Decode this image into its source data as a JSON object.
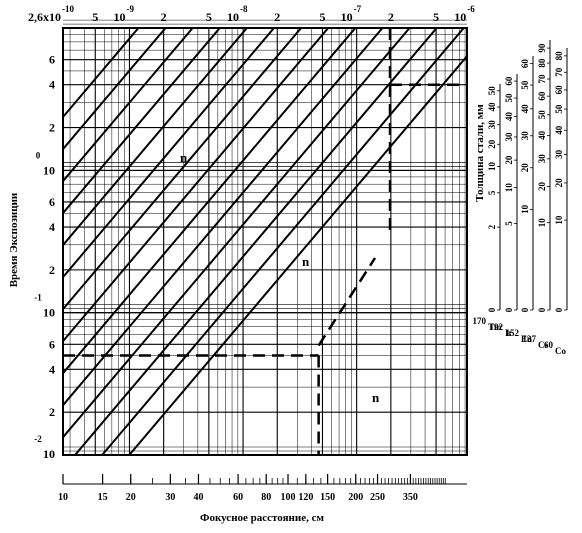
{
  "chart_data": {
    "type": "line",
    "subtype": "log-log exposure nomogram",
    "ylabel": "Время  Экспозиции",
    "xlabel": "Фокусное расстояние, см",
    "right_label": "Толщина стали, мм",
    "top_axis": {
      "scale": "log",
      "range": [
        2.6e-10,
        1e-06
      ],
      "ticks": [
        {
          "value": 2.6e-10,
          "mantissa": "2,6x10",
          "exp": "-10"
        },
        {
          "value": 5e-10,
          "mantissa": "5",
          "exp": ""
        },
        {
          "value": 1e-09,
          "mantissa": "10",
          "exp": "-9"
        },
        {
          "value": 2e-09,
          "mantissa": "2",
          "exp": ""
        },
        {
          "value": 5e-09,
          "mantissa": "5",
          "exp": ""
        },
        {
          "value": 1e-08,
          "mantissa": "10",
          "exp": "-8"
        },
        {
          "value": 2e-08,
          "mantissa": "2",
          "exp": ""
        },
        {
          "value": 5e-08,
          "mantissa": "5",
          "exp": ""
        },
        {
          "value": 1e-07,
          "mantissa": "10",
          "exp": "-7"
        },
        {
          "value": 2e-07,
          "mantissa": "2",
          "exp": ""
        },
        {
          "value": 5e-07,
          "mantissa": "5",
          "exp": ""
        },
        {
          "value": 1e-06,
          "mantissa": "10",
          "exp": "-6"
        }
      ]
    },
    "left_axis": {
      "scale": "log",
      "range": [
        0.01,
        10
      ],
      "ticks": [
        {
          "value": 6,
          "mantissa": "6",
          "exp": ""
        },
        {
          "value": 4,
          "mantissa": "4",
          "exp": ""
        },
        {
          "value": 2,
          "mantissa": "2",
          "exp": ""
        },
        {
          "value": 1,
          "mantissa": "10",
          "exp": "0"
        },
        {
          "value": 0.6,
          "mantissa": "6",
          "exp": ""
        },
        {
          "value": 0.4,
          "mantissa": "4",
          "exp": ""
        },
        {
          "value": 0.2,
          "mantissa": "2",
          "exp": ""
        },
        {
          "value": 0.1,
          "mantissa": "10",
          "exp": "-1"
        },
        {
          "value": 0.06,
          "mantissa": "6",
          "exp": ""
        },
        {
          "value": 0.04,
          "mantissa": "4",
          "exp": ""
        },
        {
          "value": 0.02,
          "mantissa": "2",
          "exp": ""
        },
        {
          "value": 0.01,
          "mantissa": "10",
          "exp": "-2"
        }
      ]
    },
    "bottom_axis": {
      "scale": "log",
      "range": [
        10,
        500
      ],
      "ticks": [
        10,
        15,
        20,
        30,
        40,
        60,
        80,
        100,
        120,
        150,
        200,
        250,
        350
      ]
    },
    "lines": {
      "description": "family of parallel diagonal lines, slope +2 in log-log coordinates (exposure ∝ distance²)",
      "count": 14,
      "slope_decades_per_decade": 2
    },
    "line_labels": [
      "n",
      "n",
      "n"
    ],
    "example_path": {
      "dashed": true,
      "exposure_value": 0.05,
      "distance_cm": 115,
      "target_exposure": 4
    },
    "steel_scales": [
      {
        "isotope_mass": "170",
        "isotope": "Tm",
        "ticks": [
          "0",
          "2",
          "5",
          "10",
          "20",
          "30",
          "40",
          "50"
        ]
      },
      {
        "isotope_mass": "192",
        "isotope": "Ir",
        "ticks": [
          "0",
          "5",
          "10",
          "20",
          "30",
          "40",
          "50",
          "60"
        ]
      },
      {
        "isotope_mass": "152",
        "isotope": "Eu",
        "ticks": [
          "0",
          "10",
          "20",
          "30",
          "40",
          "50",
          "60"
        ]
      },
      {
        "isotope_mass": "137",
        "isotope": "Cs",
        "ticks": [
          "0",
          "10",
          "20",
          "30",
          "40",
          "50",
          "60",
          "70",
          "80",
          "90"
        ]
      },
      {
        "isotope_mass": "60",
        "isotope": "Co",
        "ticks": [
          "0",
          "10",
          "20",
          "30",
          "40",
          "50",
          "60",
          "70",
          "80"
        ]
      }
    ]
  }
}
